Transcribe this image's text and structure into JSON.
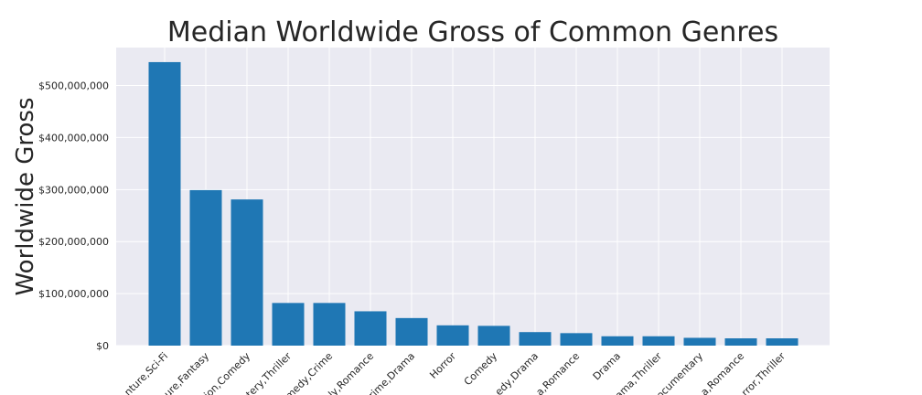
{
  "chart_data": {
    "type": "bar",
    "title": "Median Worldwide Gross of Common Genres",
    "xlabel": "",
    "ylabel": "Worldwide Gross",
    "categories": [
      "Action,Adventure,Sci-Fi",
      "Adventure,Animation,Comedy,Fantasy",
      "Adventure,Animation,Comedy",
      "Action,Crime,Mystery,Thriller",
      "Action,Comedy,Crime",
      "Comedy,Family,Romance",
      "Biography,Crime,Drama",
      "Horror",
      "Comedy",
      "Comedy,Drama",
      "Comedy,Drama,Romance",
      "Drama",
      "Crime,Drama,Thriller",
      "Documentary",
      "Drama,Romance",
      "Horror,Thriller"
    ],
    "visible_tick_labels": [
      "nture,Sci-Fi",
      "ure,Fantasy",
      "ion,Comedy",
      "tery,Thriller",
      "medy,Crime",
      "ly,Romance",
      "rime,Drama",
      "Horror",
      "Comedy",
      "edy,Drama",
      "a,Romance",
      "Drama",
      "ama,Thriller",
      "ocumentary",
      "a,Romance",
      "rror,Thriller"
    ],
    "values": [
      545000000,
      299000000,
      281000000,
      82000000,
      82000000,
      66000000,
      53000000,
      39000000,
      38000000,
      26000000,
      24000000,
      18000000,
      18000000,
      15000000,
      14000000,
      14000000
    ],
    "ylim": [
      0,
      573000000
    ],
    "yticks": [
      0,
      100000000,
      200000000,
      300000000,
      400000000,
      500000000
    ],
    "ytick_labels": [
      "$0",
      "$100,000,000",
      "$200,000,000",
      "$300,000,000",
      "$400,000,000",
      "$500,000,000"
    ],
    "grid": true,
    "colors": {
      "bar": "#1f77b4",
      "plot_background": "#eaeaf2",
      "grid": "#ffffff",
      "text": "#262626"
    }
  }
}
